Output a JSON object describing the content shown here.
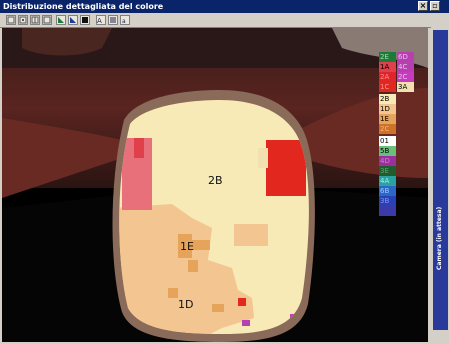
{
  "window": {
    "title": "Distribuzione dettagliata del colore",
    "close_label": "×",
    "restore_label": "▫",
    "side_panel_label": "Camera (in attesa)"
  },
  "toolbar": {
    "tools": [
      {
        "label": "",
        "icon": "frame-icon"
      },
      {
        "label": "",
        "icon": "frame-icon"
      },
      {
        "label": "",
        "icon": "frame-grid-icon"
      },
      {
        "label": "",
        "icon": "frame-icon"
      },
      {
        "label": "",
        "icon": "chart-green-icon"
      },
      {
        "label": "",
        "icon": "chart-blue-icon"
      },
      {
        "label": "",
        "icon": "stop-icon"
      },
      {
        "label": "",
        "icon": "text-size-icon"
      },
      {
        "label": "",
        "icon": "text-align-icon"
      },
      {
        "label": "",
        "icon": "text-small-icon"
      }
    ]
  },
  "tooth_labels": {
    "top": "2B",
    "middle": "1E",
    "bottom": "1D"
  },
  "legend": [
    {
      "code": "2E",
      "color": "#1f7a3a"
    },
    {
      "code": "6D",
      "color": "#b640b0"
    },
    {
      "code": "1A",
      "color": "#e0404a"
    },
    {
      "code": "4C",
      "color": "#b640b0"
    },
    {
      "code": "2A",
      "color": "#e0252a"
    },
    {
      "code": "2C",
      "color": "#c83ac0"
    },
    {
      "code": "1C",
      "color": "#e2281e"
    },
    {
      "code": "3A",
      "color": "#f2e0b0"
    },
    {
      "code": "2B",
      "color": "#f7eab6"
    },
    {
      "code": "1D",
      "color": "#f3c590"
    },
    {
      "code": "1E",
      "color": "#e6a35a"
    },
    {
      "code": "2C",
      "color": "#d07226"
    },
    {
      "code": "01",
      "color": "#ffffff"
    },
    {
      "code": "5B",
      "color": "#6ac07a"
    },
    {
      "code": "4D",
      "color": "#9a30a0"
    },
    {
      "code": "3E",
      "color": "#1f5c2e"
    },
    {
      "code": "4A",
      "color": "#2aa3a0"
    },
    {
      "code": "6B",
      "color": "#2a68c8"
    },
    {
      "code": "3B",
      "color": "#2a40b8"
    },
    {
      "code": "",
      "color": "#3a3aa8"
    }
  ]
}
